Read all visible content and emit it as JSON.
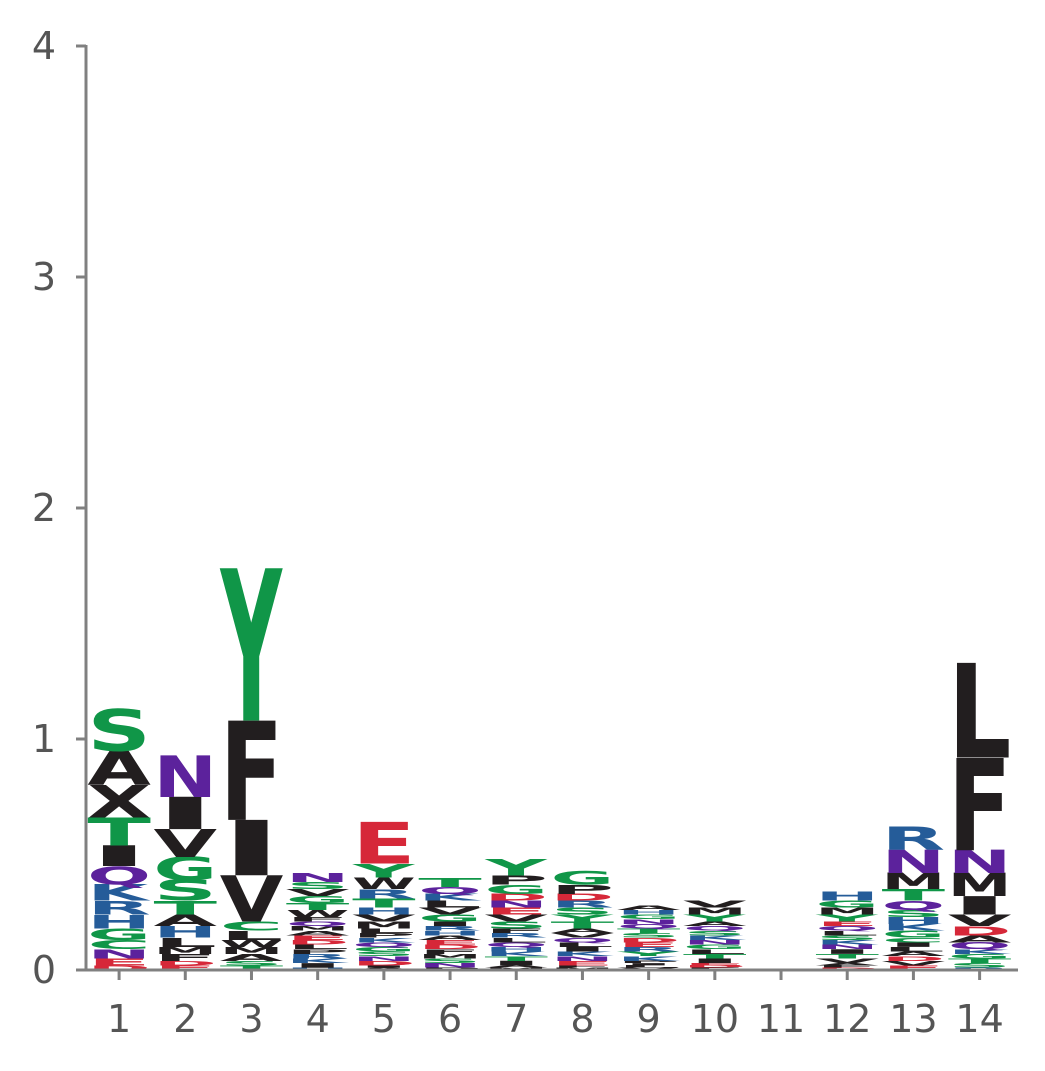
{
  "chart_data": {
    "type": "sequence-logo",
    "title": "",
    "xlabel": "",
    "ylabel": "",
    "ylim": [
      0,
      4
    ],
    "yticks": [
      0,
      1,
      2,
      3,
      4
    ],
    "categories": [
      "1",
      "2",
      "3",
      "4",
      "5",
      "6",
      "7",
      "8",
      "9",
      "10",
      "11",
      "12",
      "13",
      "14"
    ],
    "grid": false,
    "colors": {
      "polar": "#109648",
      "hydrophobic": "#221e1f",
      "basic": "#255c99",
      "acidic": "#d62839",
      "neutral": "#5c229c",
      "axis": "#808080",
      "tick_label": "#555555"
    },
    "positions": [
      {
        "x": "1",
        "letters": [
          [
            "S",
            0.18
          ],
          [
            "T",
            0.12
          ],
          [
            "Q",
            0.08
          ],
          [
            "H",
            0.06
          ],
          [
            "K",
            0.07
          ],
          [
            "R",
            0.06
          ],
          [
            "N",
            0.04
          ],
          [
            "E",
            0.03
          ],
          [
            "D",
            0.02
          ],
          [
            "G",
            0.05
          ],
          [
            "C",
            0.04
          ],
          [
            "I",
            0.09
          ],
          [
            "A",
            0.15
          ],
          [
            "X",
            0.14
          ]
        ]
      },
      {
        "x": "2",
        "letters": [
          [
            "N",
            0.18
          ],
          [
            "I",
            0.14
          ],
          [
            "V",
            0.12
          ],
          [
            "S",
            0.09
          ],
          [
            "G",
            0.1
          ],
          [
            "T",
            0.06
          ],
          [
            "H",
            0.05
          ],
          [
            "A",
            0.05
          ],
          [
            "L",
            0.04
          ],
          [
            "F",
            0.03
          ],
          [
            "M",
            0.03
          ],
          [
            "E",
            0.02
          ],
          [
            "D",
            0.02
          ]
        ]
      },
      {
        "x": "3",
        "letters": [
          [
            "Y",
            0.66
          ],
          [
            "F",
            0.43
          ],
          [
            "I",
            0.24
          ],
          [
            "V",
            0.2
          ],
          [
            "L",
            0.04
          ],
          [
            "C",
            0.04
          ],
          [
            "A",
            0.03
          ],
          [
            "M",
            0.03
          ],
          [
            "W",
            0.03
          ],
          [
            "T",
            0.02
          ],
          [
            "S",
            0.02
          ]
        ]
      },
      {
        "x": "4",
        "letters": [
          [
            "N",
            0.04
          ],
          [
            "W",
            0.03
          ],
          [
            "T",
            0.03
          ],
          [
            "G",
            0.03
          ],
          [
            "V",
            0.03
          ],
          [
            "S",
            0.03
          ],
          [
            "I",
            0.02
          ],
          [
            "K",
            0.02
          ],
          [
            "R",
            0.02
          ],
          [
            "P",
            0.02
          ],
          [
            "L",
            0.02
          ],
          [
            "D",
            0.02
          ],
          [
            "E",
            0.02
          ],
          [
            "A",
            0.02
          ],
          [
            "M",
            0.02
          ],
          [
            "Q",
            0.02
          ],
          [
            "F",
            0.02
          ],
          [
            "H",
            0.01
          ]
        ]
      },
      {
        "x": "5",
        "letters": [
          [
            "E",
            0.18
          ],
          [
            "W",
            0.05
          ],
          [
            "Y",
            0.06
          ],
          [
            "T",
            0.04
          ],
          [
            "R",
            0.04
          ],
          [
            "M",
            0.03
          ],
          [
            "V",
            0.03
          ],
          [
            "H",
            0.03
          ],
          [
            "D",
            0.02
          ],
          [
            "N",
            0.02
          ],
          [
            "S",
            0.02
          ],
          [
            "G",
            0.02
          ],
          [
            "Q",
            0.02
          ],
          [
            "K",
            0.02
          ],
          [
            "P",
            0.02
          ],
          [
            "L",
            0.02
          ],
          [
            "A",
            0.01
          ],
          [
            "I",
            0.01
          ]
        ]
      },
      {
        "x": "6",
        "letters": [
          [
            "T",
            0.04
          ],
          [
            "G",
            0.03
          ],
          [
            "V",
            0.03
          ],
          [
            "L",
            0.03
          ],
          [
            "K",
            0.03
          ],
          [
            "Q",
            0.03
          ],
          [
            "N",
            0.02
          ],
          [
            "S",
            0.02
          ],
          [
            "M",
            0.02
          ],
          [
            "F",
            0.02
          ],
          [
            "D",
            0.02
          ],
          [
            "E",
            0.02
          ],
          [
            "A",
            0.02
          ],
          [
            "H",
            0.02
          ],
          [
            "R",
            0.02
          ],
          [
            "I",
            0.02
          ],
          [
            "P",
            0.01
          ]
        ]
      },
      {
        "x": "7",
        "letters": [
          [
            "Y",
            0.07
          ],
          [
            "G",
            0.04
          ],
          [
            "S",
            0.03
          ],
          [
            "V",
            0.03
          ],
          [
            "P",
            0.04
          ],
          [
            "E",
            0.03
          ],
          [
            "N",
            0.03
          ],
          [
            "D",
            0.03
          ],
          [
            "I",
            0.02
          ],
          [
            "T",
            0.02
          ],
          [
            "K",
            0.02
          ],
          [
            "H",
            0.02
          ],
          [
            "Q",
            0.02
          ],
          [
            "L",
            0.02
          ],
          [
            "R",
            0.02
          ],
          [
            "F",
            0.02
          ],
          [
            "M",
            0.01
          ],
          [
            "A",
            0.01
          ]
        ]
      },
      {
        "x": "8",
        "letters": [
          [
            "G",
            0.06
          ],
          [
            "T",
            0.03
          ],
          [
            "P",
            0.04
          ],
          [
            "Y",
            0.03
          ],
          [
            "S",
            0.03
          ],
          [
            "R",
            0.03
          ],
          [
            "D",
            0.03
          ],
          [
            "E",
            0.02
          ],
          [
            "N",
            0.02
          ],
          [
            "K",
            0.02
          ],
          [
            "I",
            0.02
          ],
          [
            "L",
            0.02
          ],
          [
            "Q",
            0.02
          ],
          [
            "V",
            0.02
          ],
          [
            "A",
            0.02
          ],
          [
            "M",
            0.01
          ],
          [
            "F",
            0.01
          ]
        ]
      },
      {
        "x": "9",
        "letters": [
          [
            "K",
            0.02
          ],
          [
            "Y",
            0.02
          ],
          [
            "R",
            0.02
          ],
          [
            "E",
            0.02
          ],
          [
            "D",
            0.02
          ],
          [
            "S",
            0.02
          ],
          [
            "T",
            0.02
          ],
          [
            "Q",
            0.02
          ],
          [
            "N",
            0.02
          ],
          [
            "G",
            0.02
          ],
          [
            "H",
            0.02
          ],
          [
            "A",
            0.02
          ],
          [
            "V",
            0.01
          ],
          [
            "L",
            0.01
          ],
          [
            "I",
            0.01
          ],
          [
            "P",
            0.01
          ]
        ]
      },
      {
        "x": "10",
        "letters": [
          [
            "Y",
            0.03
          ],
          [
            "M",
            0.03
          ],
          [
            "V",
            0.03
          ],
          [
            "I",
            0.02
          ],
          [
            "T",
            0.02
          ],
          [
            "L",
            0.02
          ],
          [
            "G",
            0.02
          ],
          [
            "N",
            0.02
          ],
          [
            "K",
            0.02
          ],
          [
            "S",
            0.02
          ],
          [
            "Q",
            0.02
          ],
          [
            "A",
            0.02
          ],
          [
            "F",
            0.01
          ],
          [
            "D",
            0.01
          ],
          [
            "E",
            0.01
          ]
        ]
      },
      {
        "x": "11",
        "letters": []
      },
      {
        "x": "12",
        "letters": [
          [
            "H",
            0.04
          ],
          [
            "Y",
            0.03
          ],
          [
            "M",
            0.03
          ],
          [
            "G",
            0.03
          ],
          [
            "V",
            0.02
          ],
          [
            "T",
            0.02
          ],
          [
            "I",
            0.02
          ],
          [
            "N",
            0.02
          ],
          [
            "K",
            0.02
          ],
          [
            "S",
            0.02
          ],
          [
            "L",
            0.02
          ],
          [
            "Q",
            0.02
          ],
          [
            "E",
            0.02
          ],
          [
            "D",
            0.01
          ],
          [
            "F",
            0.01
          ],
          [
            "A",
            0.01
          ]
        ]
      },
      {
        "x": "13",
        "letters": [
          [
            "N",
            0.1
          ],
          [
            "R",
            0.1
          ],
          [
            "M",
            0.07
          ],
          [
            "T",
            0.05
          ],
          [
            "Q",
            0.04
          ],
          [
            "G",
            0.03
          ],
          [
            "K",
            0.03
          ],
          [
            "H",
            0.03
          ],
          [
            "S",
            0.03
          ],
          [
            "E",
            0.02
          ],
          [
            "V",
            0.02
          ],
          [
            "D",
            0.02
          ],
          [
            "A",
            0.02
          ],
          [
            "L",
            0.02
          ],
          [
            "I",
            0.02
          ],
          [
            "C",
            0.02
          ]
        ]
      },
      {
        "x": "14",
        "letters": [
          [
            "L",
            0.41
          ],
          [
            "F",
            0.4
          ],
          [
            "M",
            0.1
          ],
          [
            "N",
            0.1
          ],
          [
            "I",
            0.08
          ],
          [
            "V",
            0.05
          ],
          [
            "D",
            0.04
          ],
          [
            "Q",
            0.03
          ],
          [
            "A",
            0.03
          ],
          [
            "S",
            0.02
          ],
          [
            "T",
            0.02
          ],
          [
            "G",
            0.02
          ],
          [
            "K",
            0.02
          ],
          [
            "R",
            0.01
          ]
        ]
      }
    ]
  },
  "axis": {
    "x_tick_labels": [
      "1",
      "2",
      "3",
      "4",
      "5",
      "6",
      "7",
      "8",
      "9",
      "10",
      "11",
      "12",
      "13",
      "14"
    ],
    "y_tick_labels": [
      "0",
      "1",
      "2",
      "3",
      "4"
    ]
  }
}
